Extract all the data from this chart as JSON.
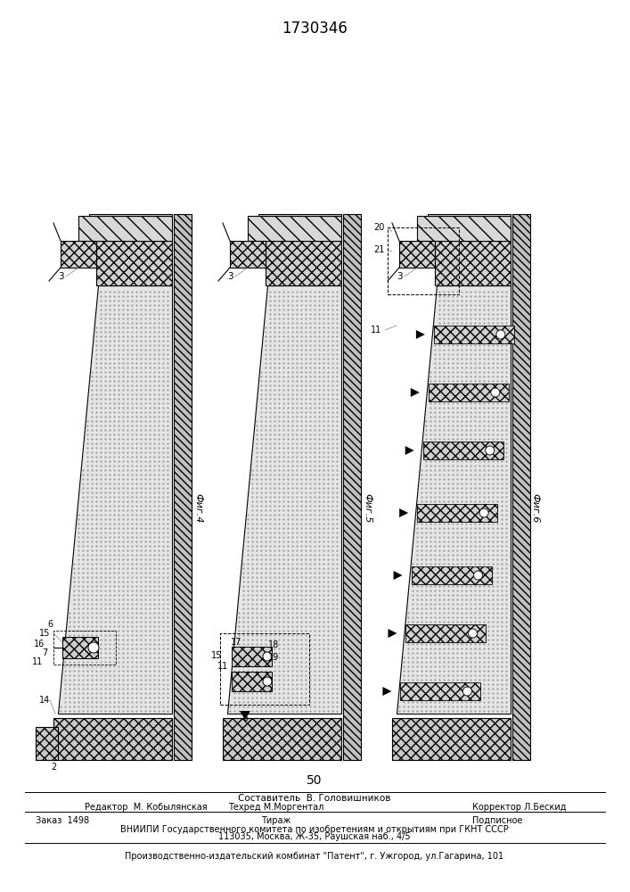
{
  "title": "1730346",
  "page_num": "50",
  "bg_color": "#ffffff",
  "footer_sestavitel": "Составитель  В. Головишников",
  "footer_redaktor": "Редактор  М. Кобылянская",
  "footer_tehred": "Техред М.Моргентал",
  "footer_korrektor": "Корректор Л.Бескид",
  "footer_zakaz": "Заказ  1498",
  "footer_tirazh": "Тираж",
  "footer_podpisnoe": "Подписное",
  "footer_vniipи": "ВНИИПИ Государственного комитета по изобретениям и открытиям при ГКНТ СССР",
  "footer_addr": "113035, Москва, Ж-35, Раушская наб., 4/5",
  "footer_prod": "Производственно-издательский комбинат \"Патент\", г. Ужгород, ул.Гагарина, 101"
}
